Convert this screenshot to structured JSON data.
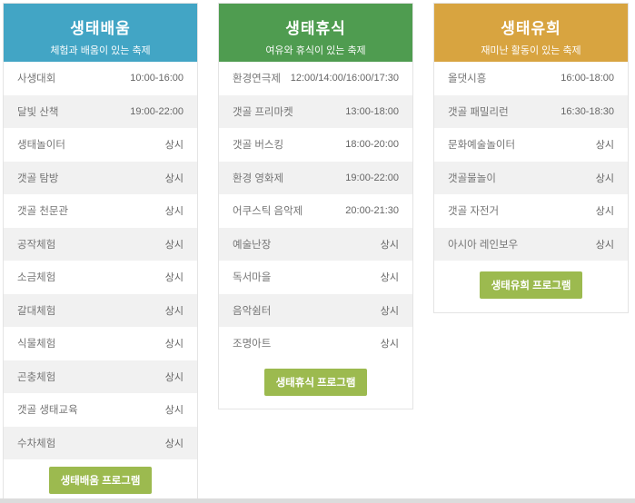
{
  "page": {
    "background_color": "#ffffff",
    "divider_color": "#dcdcdc",
    "stripe_color": "#f1f1f1",
    "border_color": "#e4e4e4",
    "button_color": "#9cba4f",
    "always_label": "상시"
  },
  "columns": [
    {
      "id": "eco-learning",
      "title": "생태배움",
      "subtitle": "체험과 배움이 있는 축제",
      "header_color": "#42a5c5",
      "button_label": "생태배움 프로그램",
      "rows": [
        {
          "label": "사생대회",
          "time": "10:00-16:00"
        },
        {
          "label": "달빛 산책",
          "time": "19:00-22:00"
        },
        {
          "label": "생태놀이터",
          "time": "상시"
        },
        {
          "label": "갯골 탐방",
          "time": "상시"
        },
        {
          "label": "갯골 천문관",
          "time": "상시"
        },
        {
          "label": "공작체험",
          "time": "상시"
        },
        {
          "label": "소금체험",
          "time": "상시"
        },
        {
          "label": "갈대체험",
          "time": "상시"
        },
        {
          "label": "식물체험",
          "time": "상시"
        },
        {
          "label": "곤충체험",
          "time": "상시"
        },
        {
          "label": "갯골 생태교육",
          "time": "상시"
        },
        {
          "label": "수차체험",
          "time": "상시"
        }
      ]
    },
    {
      "id": "eco-rest",
      "title": "생태휴식",
      "subtitle": "여유와 휴식이 있는 축제",
      "header_color": "#4f9c50",
      "button_label": "생태휴식 프로그램",
      "rows": [
        {
          "label": "환경연극제",
          "time": "12:00/14:00/16:00/17:30"
        },
        {
          "label": "갯골 프리마켓",
          "time": "13:00-18:00"
        },
        {
          "label": "갯골 버스킹",
          "time": "18:00-20:00"
        },
        {
          "label": "환경 영화제",
          "time": "19:00-22:00"
        },
        {
          "label": "어쿠스틱 음악제",
          "time": "20:00-21:30"
        },
        {
          "label": "예술난장",
          "time": "상시"
        },
        {
          "label": "독서마을",
          "time": "상시"
        },
        {
          "label": "음악쉼터",
          "time": "상시"
        },
        {
          "label": "조명아트",
          "time": "상시"
        }
      ]
    },
    {
      "id": "eco-play",
      "title": "생태유희",
      "subtitle": "재미난 활동이 있는 축제",
      "header_color": "#d8a440",
      "button_label": "생태유희 프로그램",
      "rows": [
        {
          "label": "올댓시흥",
          "time": "16:00-18:00"
        },
        {
          "label": "갯골 패밀리런",
          "time": "16:30-18:30"
        },
        {
          "label": "문화예술놀이터",
          "time": "상시"
        },
        {
          "label": "갯골물놀이",
          "time": "상시"
        },
        {
          "label": "갯골 자전거",
          "time": "상시"
        },
        {
          "label": "아시아 레인보우",
          "time": "상시"
        }
      ]
    }
  ]
}
